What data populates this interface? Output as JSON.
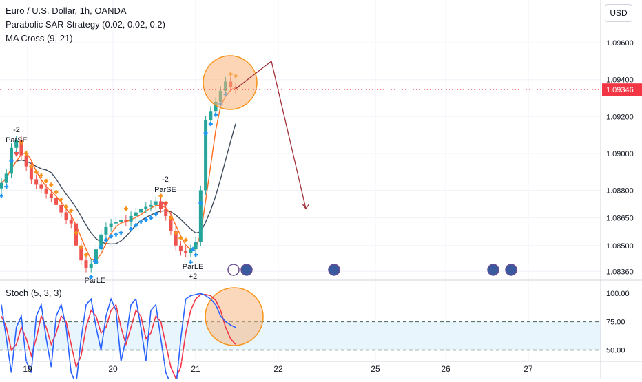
{
  "header": {
    "title": "Euro / U.S. Dollar, 1h, OANDA",
    "indicator_1": "Parabolic SAR Strategy (0.02, 0.02, 0.2)",
    "indicator_2": "MA Cross (9, 21)",
    "currency_button": "USD"
  },
  "price_axis": {
    "ticks": [
      "1.09600",
      "1.09400",
      "1.09200",
      "1.09000",
      "1.08800",
      "1.08650",
      "1.08500",
      "1.08360"
    ],
    "current_price": "1.09346"
  },
  "time_axis": {
    "ticks": [
      "19",
      "20",
      "21",
      "22",
      "25",
      "26",
      "27"
    ]
  },
  "signals": {
    "top_left_count": "-2",
    "top_left_label": "ParSE",
    "mid_count": "-2",
    "mid_label": "ParSE",
    "bottom_left_label": "ParLE",
    "bottom_right_label": "ParLE",
    "bottom_right_count": "+2"
  },
  "stoch": {
    "label": "Stoch (5, 3, 3)",
    "ticks": [
      "100.00",
      "75.00",
      "50.00"
    ]
  },
  "colors": {
    "candle_up": "#26a69a",
    "candle_down": "#ef5350",
    "sar_up": "#2196f3",
    "sar_down": "#f7931a",
    "ma_fast": "#ff6d1f",
    "ma_slow": "#3c4b5c",
    "current_price_badge": "#f23645",
    "highlight_circle": "#f7b27a",
    "forecast_arrow": "#a0303a",
    "stoch_k": "#2962ff",
    "stoch_d": "#f23645",
    "stoch_band": "#e3f2fd"
  },
  "chart_data": {
    "type": "line",
    "series": [
      {
        "values": [
          1.0884,
          1.0889,
          1.0903,
          1.0907,
          1.0899,
          1.0893,
          1.0886,
          1.0883,
          1.0881,
          1.0878,
          1.0876,
          1.0872,
          1.0868,
          1.0864,
          1.0862,
          1.085,
          1.0842,
          1.0838,
          1.084,
          1.0848,
          1.0856,
          1.086,
          1.0862,
          1.0863,
          1.0864,
          1.0863,
          1.0866,
          1.0868,
          1.087,
          1.0871,
          1.0872,
          1.0874,
          1.087,
          1.0866,
          1.0858,
          1.085,
          1.0847,
          1.0846,
          1.0848,
          1.0852,
          1.088,
          1.0918,
          1.0923,
          1.0928,
          1.0934,
          1.0939,
          1.0936,
          1.0935
        ]
      }
    ],
    "x_ticks": [
      "19",
      "20",
      "21",
      "22",
      "25",
      "26",
      "27"
    ],
    "ylim": [
      1.0832,
      1.0972
    ],
    "forecast": [
      1.0935,
      1.095,
      1.087
    ],
    "stoch_k": [
      90,
      60,
      30,
      70,
      80,
      40,
      30,
      80,
      90,
      60,
      35,
      80,
      90,
      70,
      30,
      20,
      60,
      90,
      95,
      70,
      50,
      80,
      95,
      85,
      40,
      60,
      90,
      95,
      70,
      40,
      85,
      90,
      60,
      30,
      20,
      15,
      60,
      95,
      98,
      99,
      100,
      98,
      95,
      90,
      80,
      75,
      72,
      70
    ],
    "stoch_d": [
      80,
      70,
      50,
      55,
      70,
      60,
      45,
      60,
      80,
      70,
      55,
      65,
      80,
      75,
      55,
      35,
      45,
      70,
      85,
      80,
      65,
      70,
      85,
      90,
      70,
      55,
      70,
      85,
      80,
      60,
      65,
      80,
      75,
      55,
      35,
      25,
      35,
      65,
      85,
      95,
      99,
      99,
      98,
      94,
      85,
      70,
      60,
      55
    ],
    "stoch_ylim": [
      40,
      105
    ]
  }
}
